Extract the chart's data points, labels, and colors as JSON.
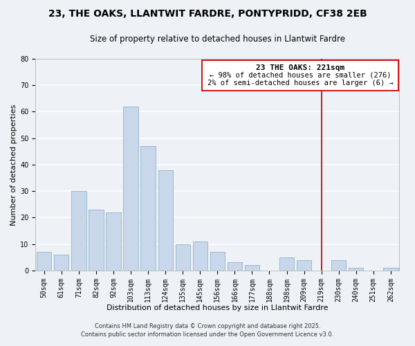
{
  "title": "23, THE OAKS, LLANTWIT FARDRE, PONTYPRIDD, CF38 2EB",
  "subtitle": "Size of property relative to detached houses in Llantwit Fardre",
  "xlabel": "Distribution of detached houses by size in Llantwit Fardre",
  "ylabel": "Number of detached properties",
  "bar_labels": [
    "50sqm",
    "61sqm",
    "71sqm",
    "82sqm",
    "92sqm",
    "103sqm",
    "113sqm",
    "124sqm",
    "135sqm",
    "145sqm",
    "156sqm",
    "166sqm",
    "177sqm",
    "188sqm",
    "198sqm",
    "209sqm",
    "219sqm",
    "230sqm",
    "240sqm",
    "251sqm",
    "262sqm"
  ],
  "bar_values": [
    7,
    6,
    30,
    23,
    22,
    62,
    47,
    38,
    10,
    11,
    7,
    3,
    2,
    0,
    5,
    4,
    0,
    4,
    1,
    0,
    1
  ],
  "bar_color": "#c8d8ea",
  "bar_edge_color": "#9ab8cc",
  "vline_x_index": 16,
  "vline_color": "#cc0000",
  "annotation_title": "23 THE OAKS: 221sqm",
  "annotation_line1": "← 98% of detached houses are smaller (276)",
  "annotation_line2": "2% of semi-detached houses are larger (6) →",
  "annotation_box_color": "#cc0000",
  "ylim": [
    0,
    80
  ],
  "yticks": [
    0,
    10,
    20,
    30,
    40,
    50,
    60,
    70,
    80
  ],
  "footer1": "Contains HM Land Registry data © Crown copyright and database right 2025.",
  "footer2": "Contains public sector information licensed under the Open Government Licence v3.0.",
  "bg_color": "#eef2f6",
  "grid_color": "#ffffff",
  "title_fontsize": 10,
  "subtitle_fontsize": 8.5,
  "axis_label_fontsize": 8,
  "tick_fontsize": 7,
  "annotation_title_fontsize": 8,
  "annotation_text_fontsize": 7.5,
  "footer_fontsize": 6
}
